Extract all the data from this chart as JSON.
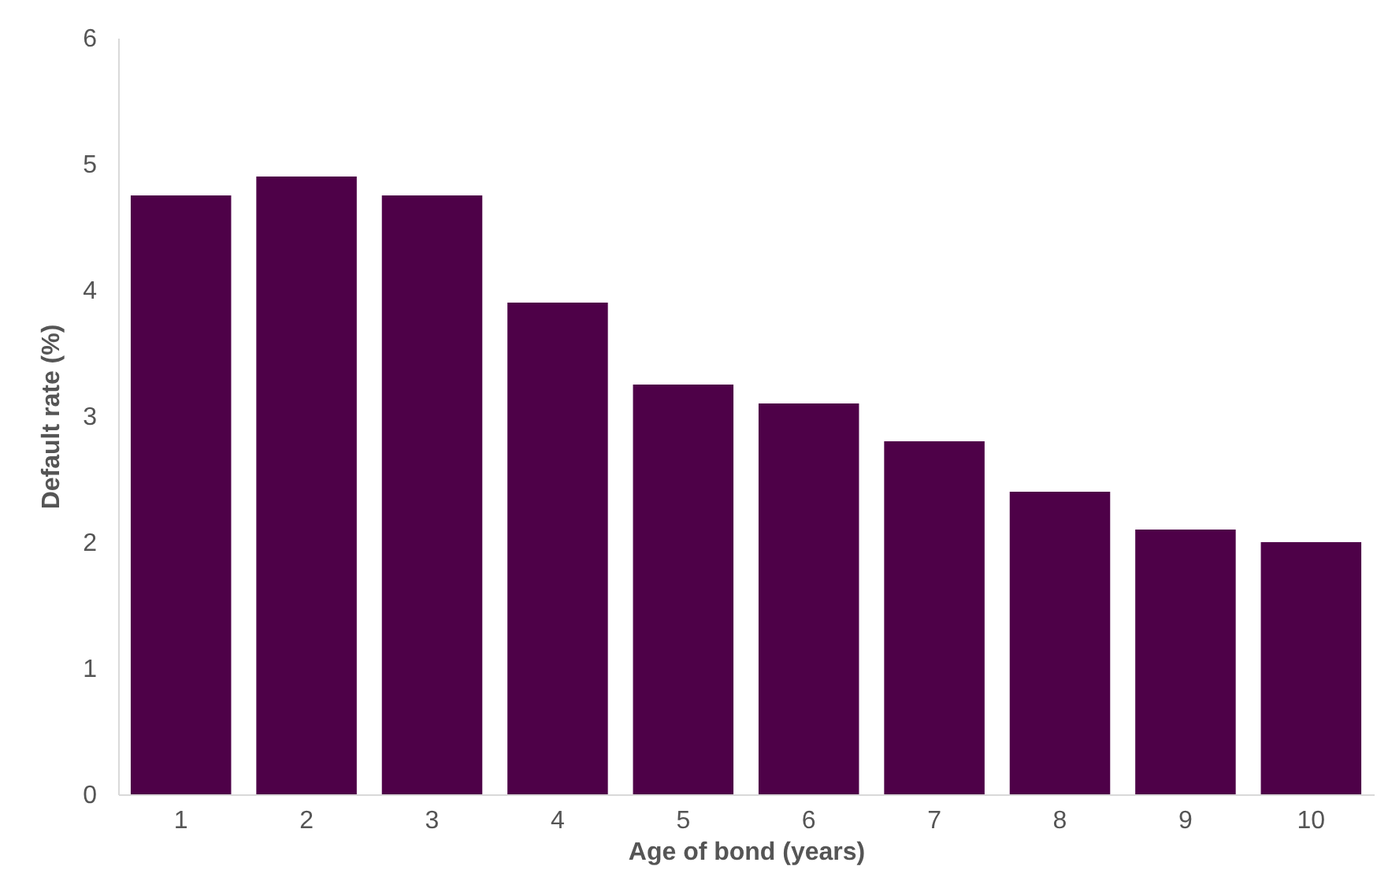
{
  "chart_data": {
    "type": "bar",
    "xlabel": "Age of bond (years)",
    "ylabel": "Default rate (%)",
    "categories": [
      "1",
      "2",
      "3",
      "4",
      "5",
      "6",
      "7",
      "8",
      "9",
      "10"
    ],
    "values": [
      4.75,
      4.9,
      4.75,
      3.9,
      3.25,
      3.1,
      2.8,
      2.4,
      2.1,
      2.0
    ],
    "color": "#4e0148",
    "ylim": [
      0,
      6
    ],
    "yticks": [
      0,
      1,
      2,
      3,
      4,
      5,
      6
    ],
    "grid": false
  }
}
